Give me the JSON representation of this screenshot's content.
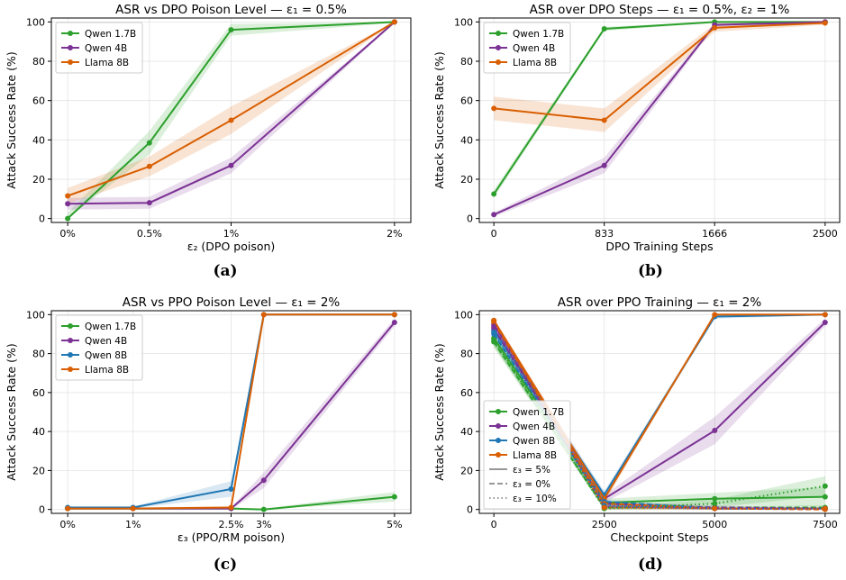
{
  "chart_data": [
    {
      "type": "line",
      "panel": "(a)",
      "title": "ASR vs DPO Poison Level — ε₁ = 0.5%",
      "xlabel": "ε₂ (DPO poison)",
      "ylabel": "Attack Success Rate (%)",
      "x": [
        0,
        0.5,
        1,
        2
      ],
      "xticks": [
        0,
        0.5,
        1,
        2
      ],
      "xticklabels": [
        "0%",
        "0.5%",
        "1%",
        "2%"
      ],
      "xlim": [
        -0.1,
        2.1
      ],
      "ylim": [
        -2,
        102
      ],
      "yticks": [
        0,
        20,
        40,
        60,
        80,
        100
      ],
      "grid": true,
      "legend_position": "upper-left",
      "series": [
        {
          "name": "Qwen 1.7B",
          "color": "#2ca02c",
          "values": [
            0,
            38.5,
            96,
            100
          ],
          "band": [
            3,
            6,
            3,
            0.5
          ]
        },
        {
          "name": "Qwen 4B",
          "color": "#7b3294",
          "values": [
            7.5,
            8,
            27,
            100
          ],
          "band": [
            3,
            3,
            4,
            0.5
          ]
        },
        {
          "name": "Llama 8B",
          "color": "#d95f02",
          "values": [
            11.5,
            26.5,
            50,
            100
          ],
          "band": [
            4,
            5,
            7,
            0.5
          ]
        }
      ]
    },
    {
      "type": "line",
      "panel": "(b)",
      "title": "ASR over DPO Steps — ε₁ = 0.5%, ε₂ = 1%",
      "xlabel": "DPO Training Steps",
      "ylabel": "Attack Success Rate (%)",
      "x": [
        0,
        833,
        1666,
        2500
      ],
      "xticks": [
        0,
        833,
        1666,
        2500
      ],
      "xticklabels": [
        "0",
        "833",
        "1666",
        "2500"
      ],
      "xlim": [
        -110,
        2610
      ],
      "ylim": [
        -2,
        102
      ],
      "yticks": [
        0,
        20,
        40,
        60,
        80,
        100
      ],
      "grid": true,
      "legend_position": "upper-left",
      "series": [
        {
          "name": "Qwen 1.7B",
          "color": "#2ca02c",
          "values": [
            12.5,
            96.5,
            100,
            100
          ],
          "band": [
            2,
            1,
            0.5,
            0.5
          ]
        },
        {
          "name": "Qwen 4B",
          "color": "#7b3294",
          "values": [
            2,
            27,
            98.5,
            100
          ],
          "band": [
            1,
            4,
            1,
            0.5
          ]
        },
        {
          "name": "Llama 8B",
          "color": "#d95f02",
          "values": [
            56,
            50,
            97,
            99.5
          ],
          "band": [
            6,
            6,
            2,
            1
          ]
        }
      ]
    },
    {
      "type": "line",
      "panel": "(c)",
      "title": "ASR vs PPO Poison Level — ε₁ = 2%",
      "xlabel": "ε₃ (PPO/RM poison)",
      "ylabel": "Attack Success Rate (%)",
      "x": [
        0,
        1,
        2.5,
        3,
        5
      ],
      "xticks": [
        0,
        1,
        2.5,
        3,
        5
      ],
      "xticklabels": [
        "0%",
        "1%",
        "2.5%",
        "3%",
        "5%"
      ],
      "xlim": [
        -0.25,
        5.25
      ],
      "ylim": [
        -2,
        102
      ],
      "yticks": [
        0,
        20,
        40,
        60,
        80,
        100
      ],
      "grid": true,
      "legend_position": "upper-left",
      "series": [
        {
          "name": "Qwen 1.7B",
          "color": "#2ca02c",
          "x": [
            0,
            1,
            2.5,
            3,
            5
          ],
          "values": [
            0.5,
            0.5,
            0.5,
            0,
            6.5
          ],
          "band": [
            0.5,
            0.5,
            0.5,
            0.5,
            2.5
          ]
        },
        {
          "name": "Qwen 4B",
          "color": "#7b3294",
          "x": [
            0,
            1,
            2.5,
            3,
            5
          ],
          "values": [
            0.5,
            0.5,
            0.5,
            15,
            96
          ],
          "band": [
            0.5,
            0.5,
            0.5,
            4,
            2
          ]
        },
        {
          "name": "Qwen 8B",
          "color": "#1f77b4",
          "x": [
            0,
            1,
            2.5,
            3,
            5
          ],
          "values": [
            1,
            1,
            10.5,
            100,
            100
          ],
          "band": [
            0.5,
            0.5,
            4,
            0.5,
            0.5
          ]
        },
        {
          "name": "Llama 8B",
          "color": "#d95f02",
          "x": [
            0,
            1,
            2.5,
            3,
            5
          ],
          "values": [
            0.5,
            0.5,
            1,
            100,
            100
          ],
          "band": [
            0.5,
            0.5,
            0.5,
            0.5,
            0.5
          ]
        }
      ]
    },
    {
      "type": "line",
      "panel": "(d)",
      "title": "ASR over PPO Training — ε₁ = 2%",
      "xlabel": "Checkpoint Steps",
      "ylabel": "Attack Success Rate (%)",
      "x": [
        0,
        2500,
        5000,
        7500
      ],
      "xticks": [
        0,
        2500,
        5000,
        7500
      ],
      "xticklabels": [
        "0",
        "2500",
        "5000",
        "7500"
      ],
      "xlim": [
        -330,
        7830
      ],
      "ylim": [
        -2,
        102
      ],
      "yticks": [
        0,
        20,
        40,
        60,
        80,
        100
      ],
      "grid": true,
      "legend_position": "lower-left",
      "style_legend": [
        {
          "label": "ε₃ = 5%",
          "dash": "solid"
        },
        {
          "label": "ε₃ = 0%",
          "dash": "dashed"
        },
        {
          "label": "ε₃ = 10%",
          "dash": "dotted"
        }
      ],
      "series": [
        {
          "name": "Qwen 1.7B",
          "color": "#2ca02c",
          "dash": "solid",
          "values": [
            88,
            3.5,
            5.5,
            6.5
          ],
          "band": [
            4,
            2,
            3,
            5
          ]
        },
        {
          "name": "Qwen 4B",
          "color": "#7b3294",
          "dash": "solid",
          "values": [
            95,
            5.5,
            40.5,
            96
          ],
          "band": [
            2,
            2,
            7,
            2
          ]
        },
        {
          "name": "Qwen 8B",
          "color": "#1f77b4",
          "dash": "solid",
          "values": [
            92,
            7.5,
            99,
            100
          ],
          "band": [
            2,
            2,
            1,
            0.5
          ]
        },
        {
          "name": "Llama 8B",
          "color": "#d95f02",
          "dash": "solid",
          "values": [
            97,
            5.5,
            100,
            100
          ],
          "band": [
            1,
            2,
            0.5,
            0.5
          ]
        },
        {
          "name": "",
          "color": "#2ca02c",
          "dash": "dashed",
          "values": [
            86,
            1,
            1,
            1
          ],
          "band": [
            3,
            1,
            1,
            1
          ]
        },
        {
          "name": "",
          "color": "#7b3294",
          "dash": "dashed",
          "values": [
            93,
            3,
            1,
            0.5
          ],
          "band": [
            2,
            1,
            1,
            0.5
          ]
        },
        {
          "name": "",
          "color": "#1f77b4",
          "dash": "dashed",
          "values": [
            90,
            4,
            0.5,
            0.5
          ],
          "band": [
            2,
            1,
            0.5,
            0.5
          ]
        },
        {
          "name": "",
          "color": "#d95f02",
          "dash": "dashed",
          "values": [
            96,
            3,
            0.5,
            0
          ],
          "band": [
            1,
            1,
            0.5,
            0.5
          ]
        },
        {
          "name": "",
          "color": "#2ca02c",
          "dash": "dotted",
          "values": [
            87,
            0.5,
            3,
            12
          ],
          "band": [
            3,
            1,
            2,
            5
          ]
        },
        {
          "name": "",
          "color": "#7b3294",
          "dash": "dotted",
          "values": [
            94,
            1.5,
            0.5,
            0.5
          ],
          "band": [
            2,
            1,
            0.5,
            0.5
          ]
        },
        {
          "name": "",
          "color": "#1f77b4",
          "dash": "dotted",
          "values": [
            91,
            2,
            0.5,
            0.5
          ],
          "band": [
            2,
            1,
            0.5,
            0.5
          ]
        },
        {
          "name": "",
          "color": "#d95f02",
          "dash": "dotted",
          "values": [
            97,
            1,
            0.5,
            0.5
          ],
          "band": [
            1,
            1,
            0.5,
            0.5
          ]
        }
      ]
    }
  ]
}
